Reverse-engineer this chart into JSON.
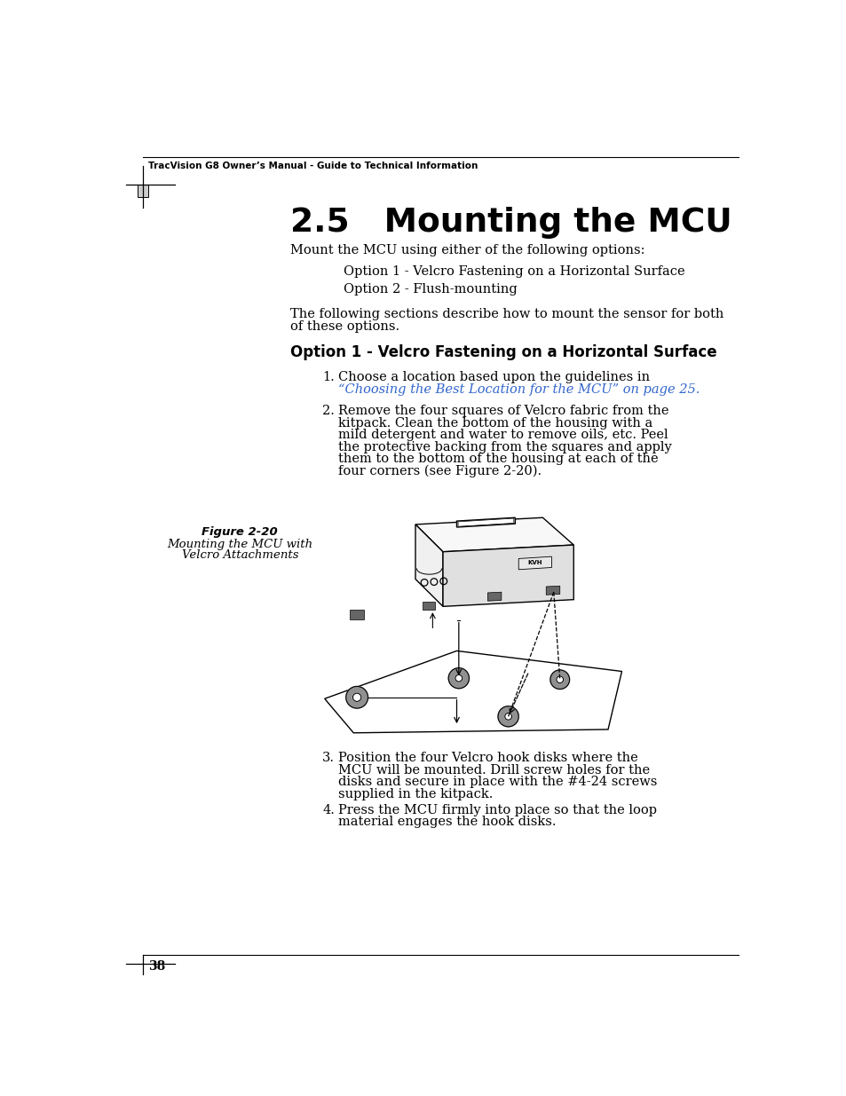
{
  "bg_color": "#ffffff",
  "header_text": "TracVision G8 Owner’s Manual - Guide to Technical Information",
  "title": "2.5   Mounting the MCU",
  "body_intro": "Mount the MCU using either of the following options:",
  "option1_indent": "Option 1 - Velcro Fastening on a Horizontal Surface",
  "option2_indent": "Option 2 - Flush-mounting",
  "body_following1": "The following sections describe how to mount the sensor for both",
  "body_following2": "of these options.",
  "section_heading": "Option 1 - Velcro Fastening on a Horizontal Surface",
  "item1_line1": "Choose a location based upon the guidelines in",
  "item1_link": "“Choosing the Best Location for the MCU” on page 25.",
  "item2_lines": [
    "Remove the four squares of Velcro fabric from the",
    "kitpack. Clean the bottom of the housing with a",
    "mild detergent and water to remove oils, etc. Peel",
    "the protective backing from the squares and apply",
    "them to the bottom of the housing at each of the",
    "four corners (see Figure 2-20)."
  ],
  "fig_label": "Figure 2-20",
  "fig_caption1": "Mounting the MCU with",
  "fig_caption2": "Velcro Attachments",
  "item3_lines": [
    "Position the four Velcro hook disks where the",
    "MCU will be mounted. Drill screw holes for the",
    "disks and secure in place with the #4-24 screws",
    "supplied in the kitpack."
  ],
  "item4_lines": [
    "Press the MCU firmly into place so that the loop",
    "material engages the hook disks."
  ],
  "page_number": "38",
  "link_color": "#3366cc",
  "text_color": "#000000"
}
